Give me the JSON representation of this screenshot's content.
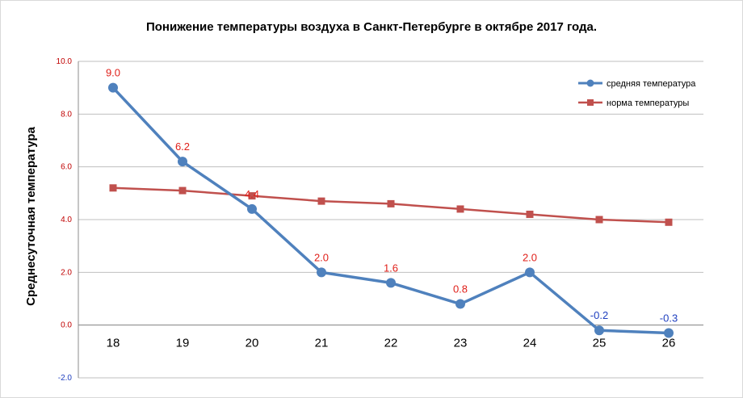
{
  "chart_data": {
    "type": "line",
    "title": "Понижение температуры воздуха в Санкт-Петербурге  в октябре 2017 года.",
    "ylabel": "Среднесуточная  температура",
    "xlabel": "",
    "categories": [
      "18",
      "19",
      "20",
      "21",
      "22",
      "23",
      "24",
      "25",
      "26"
    ],
    "ylim": [
      -2.0,
      10.0
    ],
    "yticks": [
      "10.0",
      "8.0",
      "6.0",
      "4.0",
      "2.0",
      "0.0",
      "-2.0"
    ],
    "grid": true,
    "legend_position": "top-right",
    "series": [
      {
        "name": "средняя температура",
        "color": "#4f81bd",
        "marker": "circle",
        "values": [
          9.0,
          6.2,
          4.4,
          2.0,
          1.6,
          0.8,
          2.0,
          -0.2,
          -0.3
        ],
        "labels": [
          "9.0",
          "6.2",
          "4.4",
          "2.0",
          "1.6",
          "0.8",
          "2.0",
          "-0.2",
          "-0.3"
        ]
      },
      {
        "name": "норма температуры",
        "color": "#c0504d",
        "marker": "square",
        "values": [
          5.2,
          5.1,
          4.9,
          4.7,
          4.6,
          4.4,
          4.2,
          4.0,
          3.9
        ]
      }
    ]
  }
}
